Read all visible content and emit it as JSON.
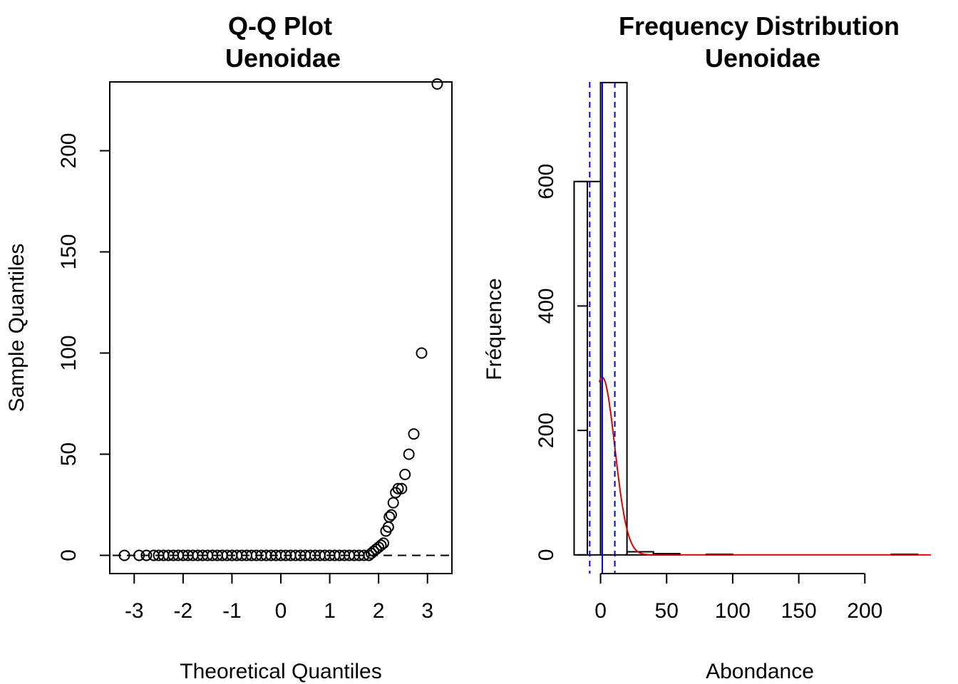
{
  "chart_data": [
    {
      "type": "scatter",
      "title": "Q-Q Plot",
      "subtitle": "Uenoidae",
      "xlabel": "Theoretical Quantiles",
      "ylabel": "Sample Quantiles",
      "xlim": [
        -3.5,
        3.5
      ],
      "ylim": [
        -9,
        234
      ],
      "x_ticks": [
        -3,
        -2,
        -1,
        0,
        1,
        2,
        3
      ],
      "y_ticks": [
        0,
        50,
        100,
        150,
        200
      ],
      "reference_line": {
        "y": 0,
        "style": "dashed"
      },
      "points": [
        {
          "x": -3.2,
          "y": 0
        },
        {
          "x": -2.9,
          "y": 0
        },
        {
          "x": -2.75,
          "y": 0
        },
        {
          "x": -2.6,
          "y": 0
        },
        {
          "x": -2.5,
          "y": 0
        },
        {
          "x": -2.4,
          "y": 0
        },
        {
          "x": -2.3,
          "y": 0
        },
        {
          "x": -2.2,
          "y": 0
        },
        {
          "x": -2.1,
          "y": 0
        },
        {
          "x": -2.0,
          "y": 0
        },
        {
          "x": -1.9,
          "y": 0
        },
        {
          "x": -1.8,
          "y": 0
        },
        {
          "x": -1.7,
          "y": 0
        },
        {
          "x": -1.6,
          "y": 0
        },
        {
          "x": -1.5,
          "y": 0
        },
        {
          "x": -1.4,
          "y": 0
        },
        {
          "x": -1.3,
          "y": 0
        },
        {
          "x": -1.2,
          "y": 0
        },
        {
          "x": -1.1,
          "y": 0
        },
        {
          "x": -1.0,
          "y": 0
        },
        {
          "x": -0.9,
          "y": 0
        },
        {
          "x": -0.8,
          "y": 0
        },
        {
          "x": -0.7,
          "y": 0
        },
        {
          "x": -0.6,
          "y": 0
        },
        {
          "x": -0.5,
          "y": 0
        },
        {
          "x": -0.4,
          "y": 0
        },
        {
          "x": -0.3,
          "y": 0
        },
        {
          "x": -0.2,
          "y": 0
        },
        {
          "x": -0.1,
          "y": 0
        },
        {
          "x": 0.0,
          "y": 0
        },
        {
          "x": 0.1,
          "y": 0
        },
        {
          "x": 0.2,
          "y": 0
        },
        {
          "x": 0.3,
          "y": 0
        },
        {
          "x": 0.4,
          "y": 0
        },
        {
          "x": 0.5,
          "y": 0
        },
        {
          "x": 0.6,
          "y": 0
        },
        {
          "x": 0.7,
          "y": 0
        },
        {
          "x": 0.8,
          "y": 0
        },
        {
          "x": 0.9,
          "y": 0
        },
        {
          "x": 1.0,
          "y": 0
        },
        {
          "x": 1.1,
          "y": 0
        },
        {
          "x": 1.2,
          "y": 0
        },
        {
          "x": 1.3,
          "y": 0
        },
        {
          "x": 1.4,
          "y": 0
        },
        {
          "x": 1.5,
          "y": 0
        },
        {
          "x": 1.6,
          "y": 0
        },
        {
          "x": 1.7,
          "y": 0
        },
        {
          "x": 1.8,
          "y": 0
        },
        {
          "x": 1.85,
          "y": 1
        },
        {
          "x": 1.9,
          "y": 2
        },
        {
          "x": 1.95,
          "y": 3
        },
        {
          "x": 2.0,
          "y": 4
        },
        {
          "x": 2.05,
          "y": 5
        },
        {
          "x": 2.1,
          "y": 6
        },
        {
          "x": 2.15,
          "y": 12
        },
        {
          "x": 2.2,
          "y": 14
        },
        {
          "x": 2.22,
          "y": 19
        },
        {
          "x": 2.26,
          "y": 20
        },
        {
          "x": 2.3,
          "y": 26
        },
        {
          "x": 2.35,
          "y": 31
        },
        {
          "x": 2.4,
          "y": 33
        },
        {
          "x": 2.47,
          "y": 33
        },
        {
          "x": 2.54,
          "y": 40
        },
        {
          "x": 2.62,
          "y": 50
        },
        {
          "x": 2.72,
          "y": 60
        },
        {
          "x": 2.88,
          "y": 100
        },
        {
          "x": 3.2,
          "y": 233
        }
      ]
    },
    {
      "type": "bar",
      "title": "Frequency Distribution",
      "subtitle": "Uenoidae",
      "xlabel": "Abondance",
      "ylabel": "Fréquence",
      "xlim": [
        -10,
        250
      ],
      "ylim": [
        -30,
        760
      ],
      "x_ticks": [
        0,
        50,
        100,
        150,
        200
      ],
      "y_ticks": [
        0,
        200,
        400,
        600
      ],
      "bins": [
        {
          "from": -20,
          "to": 0,
          "count": 600
        },
        {
          "from": 0,
          "to": 20,
          "count": 759
        },
        {
          "from": 20,
          "to": 40,
          "count": 5
        },
        {
          "from": 40,
          "to": 60,
          "count": 2
        },
        {
          "from": 60,
          "to": 80,
          "count": 0
        },
        {
          "from": 80,
          "to": 100,
          "count": 1
        },
        {
          "from": 100,
          "to": 220,
          "count": 0
        },
        {
          "from": 220,
          "to": 240,
          "count": 1
        }
      ],
      "density_curve": {
        "color": "#e00000",
        "mean": 1.3,
        "sd": 9.5,
        "scale": 6800
      },
      "vlines": [
        {
          "x": 1.3,
          "style": "solid",
          "color": "#0000dd"
        },
        {
          "x": -8.2,
          "style": "dashed",
          "color": "#0000dd"
        },
        {
          "x": 10.8,
          "style": "dashed",
          "color": "#0000dd"
        }
      ]
    }
  ]
}
